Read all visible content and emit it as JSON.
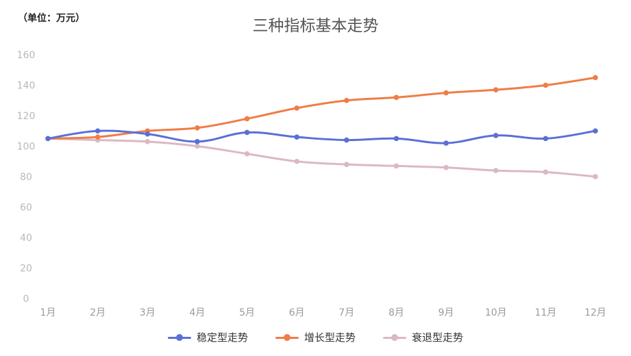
{
  "unit_label": "（单位：万元）",
  "chart_data": {
    "type": "line",
    "title": "三种指标基本走势",
    "xlabel": "",
    "ylabel": "",
    "categories": [
      "1月",
      "2月",
      "3月",
      "4月",
      "5月",
      "6月",
      "7月",
      "8月",
      "9月",
      "10月",
      "11月",
      "12月"
    ],
    "ylim": [
      0,
      160
    ],
    "yticks": [
      0,
      20,
      40,
      60,
      80,
      100,
      120,
      140,
      160
    ],
    "grid": false,
    "legend": "bottom",
    "series": [
      {
        "name": "稳定型走势",
        "color": "#5b6fd6",
        "values": [
          105,
          110,
          108,
          103,
          109,
          106,
          104,
          105,
          102,
          107,
          105,
          110
        ]
      },
      {
        "name": "增长型走势",
        "color": "#f07c46",
        "values": [
          105,
          106,
          110,
          112,
          118,
          125,
          130,
          132,
          135,
          137,
          140,
          145
        ]
      },
      {
        "name": "衰退型走势",
        "color": "#dbb8c4",
        "values": [
          105,
          104,
          103,
          100,
          95,
          90,
          88,
          87,
          86,
          84,
          83,
          80
        ]
      }
    ]
  }
}
